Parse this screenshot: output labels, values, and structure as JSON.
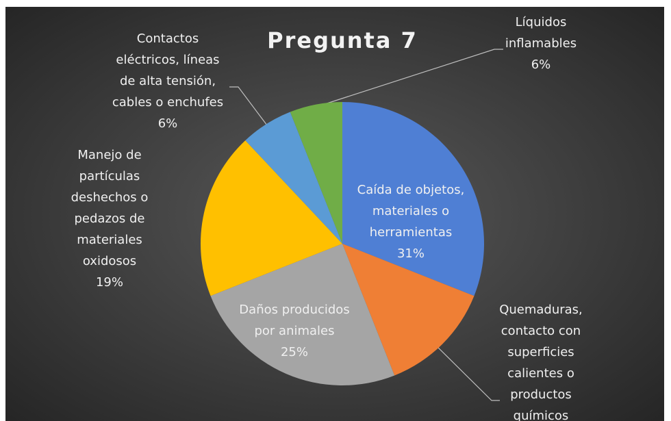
{
  "chart_data": {
    "type": "pie",
    "title": "Pregunta 7",
    "categories": [
      "Caída de objetos,\nmateriales o\nherramientas",
      "Quemaduras,\ncontacto con\nsuperficies\ncalientes o\nproductos\nquímicos",
      "Daños producidos\npor animales",
      "Manejo de\npartículas\ndeshechos o\npedazos de\nmateriales\noxidosos",
      "Contactos\neléctricos, líneas\nde alta tensión,\ncables o enchufes",
      "Líquidos\ninflamables"
    ],
    "values": [
      31,
      13,
      25,
      19,
      6,
      6
    ],
    "value_labels": [
      "31%",
      null,
      "25%",
      "19%",
      "6%",
      "6%"
    ],
    "colors": [
      "#4f7fd4",
      "#ef7f35",
      "#a5a5a5",
      "#ffc000",
      "#5b9bd5",
      "#70ad47"
    ]
  }
}
